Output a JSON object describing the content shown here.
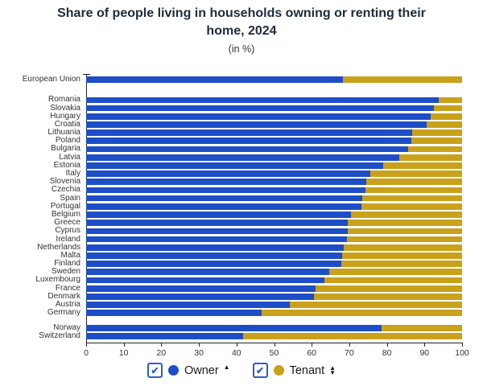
{
  "title": {
    "line1": "Share of people living in households owning or renting their",
    "line2": "home, 2024"
  },
  "subtitle": "(in %)",
  "colors": {
    "owner": "#1d4ec6",
    "tenant": "#c9a11b",
    "title_text": "#1f2b3a",
    "axis_text": "#333333",
    "axis_line": "#222222",
    "checkbox_border": "#2f5bc7",
    "checkmark": "#2f5bc7"
  },
  "legend": {
    "owner_label": "Owner",
    "tenant_label": "Tenant",
    "owner_checked": true,
    "tenant_checked": true,
    "owner_sort_icon": "▲",
    "tenant_sort_icon_up": "▲",
    "tenant_sort_icon_down": "▼",
    "checkmark_glyph": "✔"
  },
  "x_axis": {
    "min": 0,
    "max": 100,
    "tick_step": 10,
    "tick_labels": [
      "0",
      "10",
      "20",
      "30",
      "40",
      "50",
      "60",
      "70",
      "80",
      "90",
      "100"
    ]
  },
  "chart_data": {
    "type": "bar",
    "orientation": "horizontal",
    "stacked": true,
    "unit": "%",
    "xlim": [
      0,
      100
    ],
    "grid": false,
    "legend_position": "bottom",
    "series_names": [
      "Owner",
      "Tenant"
    ],
    "rows": [
      {
        "label": "European Union",
        "owner": 68.4,
        "tenant": 31.6,
        "group": 0
      },
      {
        "label": "Romania",
        "owner": 93.7,
        "tenant": 6.3,
        "group": 1
      },
      {
        "label": "Slovakia",
        "owner": 92.4,
        "tenant": 7.6,
        "group": 1
      },
      {
        "label": "Hungary",
        "owner": 91.6,
        "tenant": 8.4,
        "group": 1
      },
      {
        "label": "Croatia",
        "owner": 90.5,
        "tenant": 9.5,
        "group": 1
      },
      {
        "label": "Lithuania",
        "owner": 86.8,
        "tenant": 13.2,
        "group": 1
      },
      {
        "label": "Poland",
        "owner": 86.6,
        "tenant": 13.4,
        "group": 1
      },
      {
        "label": "Bulgaria",
        "owner": 85.6,
        "tenant": 14.4,
        "group": 1
      },
      {
        "label": "Latvia",
        "owner": 83.4,
        "tenant": 16.6,
        "group": 1
      },
      {
        "label": "Estonia",
        "owner": 79.0,
        "tenant": 21.0,
        "group": 1
      },
      {
        "label": "Italy",
        "owner": 75.5,
        "tenant": 24.5,
        "group": 1
      },
      {
        "label": "Slovenia",
        "owner": 74.6,
        "tenant": 25.4,
        "group": 1
      },
      {
        "label": "Czechia",
        "owner": 74.4,
        "tenant": 25.6,
        "group": 1
      },
      {
        "label": "Spain",
        "owner": 73.4,
        "tenant": 26.6,
        "group": 1
      },
      {
        "label": "Portugal",
        "owner": 73.2,
        "tenant": 26.8,
        "group": 1
      },
      {
        "label": "Belgium",
        "owner": 70.5,
        "tenant": 29.5,
        "group": 1
      },
      {
        "label": "Greece",
        "owner": 69.7,
        "tenant": 30.3,
        "group": 1
      },
      {
        "label": "Cyprus",
        "owner": 69.5,
        "tenant": 30.5,
        "group": 1
      },
      {
        "label": "Ireland",
        "owner": 69.3,
        "tenant": 30.7,
        "group": 1
      },
      {
        "label": "Netherlands",
        "owner": 68.6,
        "tenant": 31.4,
        "group": 1
      },
      {
        "label": "Malta",
        "owner": 68.2,
        "tenant": 31.8,
        "group": 1
      },
      {
        "label": "Finland",
        "owner": 67.8,
        "tenant": 32.2,
        "group": 1
      },
      {
        "label": "Sweden",
        "owner": 64.6,
        "tenant": 35.4,
        "group": 1
      },
      {
        "label": "Luxembourg",
        "owner": 63.4,
        "tenant": 36.6,
        "group": 1
      },
      {
        "label": "France",
        "owner": 61.1,
        "tenant": 38.9,
        "group": 1
      },
      {
        "label": "Denmark",
        "owner": 60.6,
        "tenant": 39.4,
        "group": 1
      },
      {
        "label": "Austria",
        "owner": 54.1,
        "tenant": 45.9,
        "group": 1
      },
      {
        "label": "Germany",
        "owner": 46.7,
        "tenant": 53.3,
        "group": 1
      },
      {
        "label": "Norway",
        "owner": 78.5,
        "tenant": 21.5,
        "group": 2
      },
      {
        "label": "Switzerland",
        "owner": 41.7,
        "tenant": 58.3,
        "group": 2
      }
    ]
  }
}
